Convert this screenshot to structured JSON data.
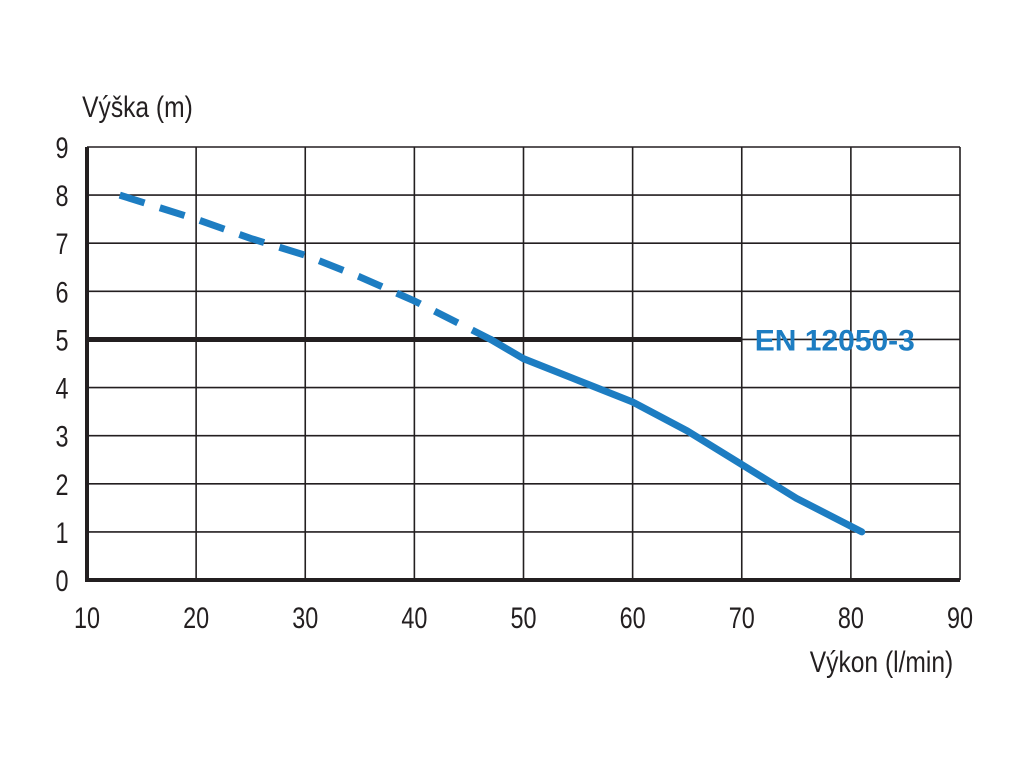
{
  "chart_data": {
    "type": "line",
    "title": "",
    "xlabel": "Výkon (l/min)",
    "ylabel": "Výška (m)",
    "xlim": [
      10,
      90
    ],
    "ylim": [
      0,
      9
    ],
    "x_ticks": [
      "10",
      "20",
      "30",
      "40",
      "50",
      "60",
      "70",
      "80",
      "90"
    ],
    "y_ticks": [
      "0",
      "1",
      "2",
      "3",
      "4",
      "5",
      "6",
      "7",
      "8",
      "9"
    ],
    "grid": true,
    "series": [
      {
        "style": "dashed",
        "color": "#1d7dc2",
        "x": [
          13,
          20,
          25,
          30,
          35,
          40,
          47
        ],
        "y": [
          8.0,
          7.5,
          7.1,
          6.75,
          6.3,
          5.8,
          5.0
        ]
      },
      {
        "style": "solid",
        "color": "#1d7dc2",
        "x": [
          47,
          50,
          55,
          60,
          65,
          70,
          75,
          81
        ],
        "y": [
          5.0,
          4.6,
          4.15,
          3.7,
          3.1,
          2.4,
          1.7,
          1.0
        ]
      }
    ],
    "reference_line": {
      "y": 5,
      "x_end": 70,
      "color": "#231f20",
      "label": "EN 12050-3",
      "label_color": "#1d7dc2"
    }
  }
}
